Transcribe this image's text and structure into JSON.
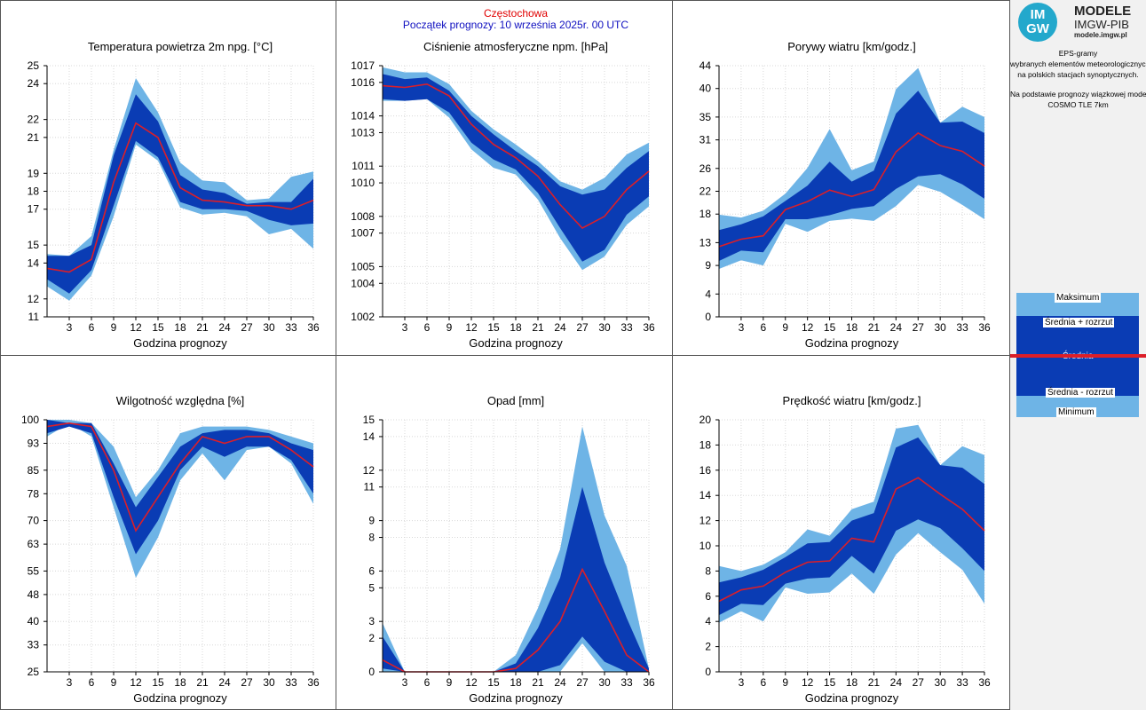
{
  "header": {
    "station": "Częstochowa",
    "forecast_start": "Początek prognozy: 10 września 2025r. 00 UTC"
  },
  "colors": {
    "max_band": "#6eb4e6",
    "spread_band": "#0a3cb4",
    "mean_line": "#dc1e28",
    "station_title": "#e00000",
    "start_title": "#1010c0"
  },
  "sidebar": {
    "logo_text": "IM GW",
    "logo_title": "MODELE",
    "logo_org": "IMGW-PIB",
    "logo_url": "modele.imgw.pl",
    "desc_lines": [
      "EPS-gramy",
      "wybranych elementów meteorologicznych",
      "na polskich stacjach  synoptycznych.",
      "",
      "Na podstawie prognozy wiązkowej modelu",
      "COSMO TLE 7km"
    ],
    "legend": {
      "max": "Maksimum",
      "mean_plus": "Średnia + rozrzut",
      "mean": "Średnia",
      "mean_minus": "Średnia - rozrzut",
      "min": "Minimum"
    }
  },
  "chart_data": [
    {
      "type": "area",
      "title": "Temperatura powietrza 2m npg. [°C]",
      "xlabel": "Godzina prognozy",
      "x": [
        0,
        3,
        6,
        9,
        12,
        15,
        18,
        21,
        24,
        27,
        30,
        33,
        36
      ],
      "xticks": [
        3,
        6,
        9,
        12,
        15,
        18,
        21,
        24,
        27,
        30,
        33,
        36
      ],
      "xlim": [
        0,
        36
      ],
      "ylim": [
        11,
        25
      ],
      "yticks": [
        11,
        12,
        14,
        15,
        17,
        18,
        19,
        21,
        22,
        24,
        25
      ],
      "series": [
        {
          "name": "Maksimum",
          "values": [
            14.5,
            14.4,
            15.5,
            20.3,
            24.3,
            22.4,
            19.6,
            18.6,
            18.5,
            17.5,
            17.6,
            18.8,
            19.1
          ]
        },
        {
          "name": "Średnia + rozrzut",
          "values": [
            14.4,
            14.4,
            15.0,
            20.0,
            23.4,
            21.9,
            18.9,
            18.1,
            17.9,
            17.3,
            17.4,
            17.4,
            18.7
          ]
        },
        {
          "name": "Średnia",
          "values": [
            13.7,
            13.5,
            14.2,
            18.5,
            21.8,
            21.0,
            18.2,
            17.5,
            17.4,
            17.2,
            17.2,
            17.0,
            17.5
          ]
        },
        {
          "name": "Średnia - rozrzut",
          "values": [
            13.1,
            12.3,
            13.6,
            17.2,
            20.8,
            19.9,
            17.4,
            17.0,
            17.0,
            16.9,
            16.4,
            16.1,
            16.2
          ]
        },
        {
          "name": "Minimum",
          "values": [
            12.7,
            11.9,
            13.3,
            16.6,
            20.6,
            19.7,
            17.1,
            16.7,
            16.8,
            16.6,
            15.6,
            15.9,
            14.8
          ]
        }
      ]
    },
    {
      "type": "area",
      "title": "Ciśnienie atmosferyczne npm. [hPa]",
      "xlabel": "Godzina prognozy",
      "x": [
        0,
        3,
        6,
        9,
        12,
        15,
        18,
        21,
        24,
        27,
        30,
        33,
        36
      ],
      "xticks": [
        3,
        6,
        9,
        12,
        15,
        18,
        21,
        24,
        27,
        30,
        33,
        36
      ],
      "xlim": [
        0,
        36
      ],
      "ylim": [
        1002,
        1017
      ],
      "yticks": [
        1002,
        1004,
        1005,
        1007,
        1008,
        1010,
        1011,
        1013,
        1014,
        1016,
        1017
      ],
      "series": [
        {
          "name": "Maksimum",
          "values": [
            1016.9,
            1016.6,
            1016.6,
            1015.9,
            1014.3,
            1013.2,
            1012.3,
            1011.3,
            1010.1,
            1009.6,
            1010.3,
            1011.7,
            1012.4
          ]
        },
        {
          "name": "Średnia + rozrzut",
          "values": [
            1016.5,
            1016.2,
            1016.3,
            1015.5,
            1014.0,
            1012.9,
            1011.9,
            1011.0,
            1009.8,
            1009.3,
            1009.6,
            1010.9,
            1011.9
          ]
        },
        {
          "name": "Średnia",
          "values": [
            1015.8,
            1015.7,
            1015.9,
            1015.2,
            1013.5,
            1012.3,
            1011.5,
            1010.4,
            1008.7,
            1007.3,
            1008.0,
            1009.6,
            1010.7
          ]
        },
        {
          "name": "Średnia - rozrzut",
          "values": [
            1015.0,
            1014.9,
            1015.0,
            1014.2,
            1012.4,
            1011.4,
            1010.8,
            1009.4,
            1007.3,
            1005.3,
            1006.0,
            1008.1,
            1009.2
          ]
        },
        {
          "name": "Minimum",
          "values": [
            1014.9,
            1014.9,
            1015.0,
            1013.9,
            1012.0,
            1010.9,
            1010.5,
            1009.0,
            1006.7,
            1004.8,
            1005.6,
            1007.5,
            1008.6
          ]
        }
      ]
    },
    {
      "type": "area",
      "title": "Porywy wiatru [km/godz.]",
      "xlabel": "Godzina prognozy",
      "x": [
        0,
        3,
        6,
        9,
        12,
        15,
        18,
        21,
        24,
        27,
        30,
        33,
        36
      ],
      "xticks": [
        3,
        6,
        9,
        12,
        15,
        18,
        21,
        24,
        27,
        30,
        33,
        36
      ],
      "xlim": [
        0,
        36
      ],
      "ylim": [
        0,
        44
      ],
      "yticks": [
        0,
        4,
        9,
        13,
        18,
        22,
        26,
        31,
        35,
        40,
        44
      ],
      "series": [
        {
          "name": "Maksimum",
          "values": [
            17.9,
            17.4,
            18.6,
            21.6,
            26.1,
            32.9,
            25.7,
            27.2,
            39.9,
            43.6,
            34.0,
            36.8,
            35.0
          ]
        },
        {
          "name": "Średnia + rozrzut",
          "values": [
            15.2,
            16.2,
            17.6,
            20.3,
            23.0,
            27.2,
            23.7,
            25.6,
            35.6,
            39.6,
            34.0,
            34.2,
            32.2
          ]
        },
        {
          "name": "Średnia",
          "values": [
            12.3,
            13.6,
            14.2,
            18.8,
            20.2,
            22.2,
            21.1,
            22.3,
            28.9,
            32.2,
            30.0,
            29.0,
            26.4
          ]
        },
        {
          "name": "Średnia - rozrzut",
          "values": [
            9.8,
            11.6,
            11.3,
            17.1,
            17.1,
            17.8,
            18.9,
            19.4,
            22.4,
            24.6,
            25.0,
            23.2,
            20.7
          ]
        },
        {
          "name": "Minimum",
          "values": [
            8.4,
            9.9,
            9.0,
            16.3,
            14.9,
            16.8,
            17.2,
            16.8,
            19.4,
            23.1,
            21.9,
            19.6,
            17.1
          ]
        }
      ]
    },
    {
      "type": "area",
      "title": "Wilgotność względna [%]",
      "xlabel": "Godzina prognozy",
      "x": [
        0,
        3,
        6,
        9,
        12,
        15,
        18,
        21,
        24,
        27,
        30,
        33,
        36
      ],
      "xticks": [
        3,
        6,
        9,
        12,
        15,
        18,
        21,
        24,
        27,
        30,
        33,
        36
      ],
      "xlim": [
        0,
        36
      ],
      "ylim": [
        25,
        100
      ],
      "yticks": [
        25,
        33,
        40,
        48,
        55,
        63,
        70,
        78,
        85,
        93,
        100
      ],
      "series": [
        {
          "name": "Maksimum",
          "values": [
            100,
            100,
            99,
            92,
            77,
            85,
            96,
            98,
            98,
            98,
            97,
            95,
            93
          ]
        },
        {
          "name": "Średnia + rozrzut",
          "values": [
            100,
            99,
            99,
            87,
            74,
            83,
            92,
            96,
            97,
            97,
            96,
            93,
            91
          ]
        },
        {
          "name": "Średnia",
          "values": [
            98,
            99,
            98,
            85,
            67,
            77,
            87,
            95,
            93,
            95,
            95,
            91,
            86
          ]
        },
        {
          "name": "Średnia - rozrzut",
          "values": [
            96,
            98,
            96,
            77,
            60,
            70,
            85,
            92,
            89,
            92,
            92,
            88,
            78
          ]
        },
        {
          "name": "Minimum",
          "values": [
            95,
            99,
            95,
            74,
            53,
            65,
            82,
            90,
            82,
            91,
            92,
            87,
            75
          ]
        }
      ]
    },
    {
      "type": "area",
      "title": "Opad [mm]",
      "xlabel": "Godzina prognozy",
      "x": [
        0,
        3,
        6,
        9,
        12,
        15,
        18,
        21,
        24,
        27,
        30,
        33,
        36
      ],
      "xticks": [
        3,
        6,
        9,
        12,
        15,
        18,
        21,
        24,
        27,
        30,
        33,
        36
      ],
      "xlim": [
        0,
        36
      ],
      "ylim": [
        0,
        15
      ],
      "yticks": [
        0,
        2,
        3,
        5,
        6,
        8,
        9,
        11,
        12,
        14,
        15
      ],
      "series": [
        {
          "name": "Maksimum",
          "values": [
            2.9,
            0.0,
            0.0,
            0.0,
            0.0,
            0.0,
            1.0,
            3.8,
            7.3,
            14.6,
            9.3,
            6.3,
            0.2
          ]
        },
        {
          "name": "Średnia + rozrzut",
          "values": [
            2.1,
            0.0,
            0.0,
            0.0,
            0.0,
            0.0,
            0.5,
            2.6,
            5.6,
            11.0,
            6.5,
            3.2,
            0.2
          ]
        },
        {
          "name": "Średnia",
          "values": [
            0.7,
            0.0,
            0.0,
            0.0,
            0.0,
            0.0,
            0.2,
            1.3,
            3.0,
            6.1,
            3.6,
            1.0,
            0.0
          ]
        },
        {
          "name": "Średnia - rozrzut",
          "values": [
            0.2,
            0.0,
            0.0,
            0.0,
            0.0,
            0.0,
            0.0,
            0.0,
            0.4,
            2.1,
            0.6,
            0.0,
            0.0
          ]
        },
        {
          "name": "Minimum",
          "values": [
            0.0,
            0.0,
            0.0,
            0.0,
            0.0,
            0.0,
            0.0,
            0.0,
            0.0,
            1.7,
            0.0,
            0.0,
            0.0
          ]
        }
      ]
    },
    {
      "type": "area",
      "title": "Prędkość wiatru [km/godz.]",
      "xlabel": "Godzina prognozy",
      "x": [
        0,
        3,
        6,
        9,
        12,
        15,
        18,
        21,
        24,
        27,
        30,
        33,
        36
      ],
      "xticks": [
        3,
        6,
        9,
        12,
        15,
        18,
        21,
        24,
        27,
        30,
        33,
        36
      ],
      "xlim": [
        0,
        36
      ],
      "ylim": [
        0,
        20
      ],
      "yticks": [
        0,
        2,
        4,
        6,
        8,
        10,
        12,
        14,
        16,
        18,
        20
      ],
      "series": [
        {
          "name": "Maksimum",
          "values": [
            8.4,
            8.0,
            8.5,
            9.5,
            11.3,
            10.8,
            12.9,
            13.5,
            19.3,
            19.6,
            16.4,
            17.9,
            17.2
          ]
        },
        {
          "name": "Średnia + rozrzut",
          "values": [
            7.1,
            7.5,
            8.1,
            9.1,
            10.2,
            10.3,
            12.0,
            12.6,
            17.8,
            18.6,
            16.4,
            16.2,
            14.9
          ]
        },
        {
          "name": "Średnia",
          "values": [
            5.6,
            6.5,
            6.8,
            7.9,
            8.7,
            8.8,
            10.6,
            10.3,
            14.5,
            15.4,
            14.1,
            12.9,
            11.2
          ]
        },
        {
          "name": "Średnia - rozrzut",
          "values": [
            4.5,
            5.4,
            5.3,
            7.0,
            7.4,
            7.5,
            9.2,
            7.8,
            11.2,
            12.1,
            11.4,
            9.8,
            8.0
          ]
        },
        {
          "name": "Minimum",
          "values": [
            3.9,
            4.8,
            4.0,
            6.7,
            6.2,
            6.3,
            7.8,
            6.2,
            9.3,
            11.0,
            9.5,
            8.1,
            5.4
          ]
        }
      ]
    }
  ]
}
